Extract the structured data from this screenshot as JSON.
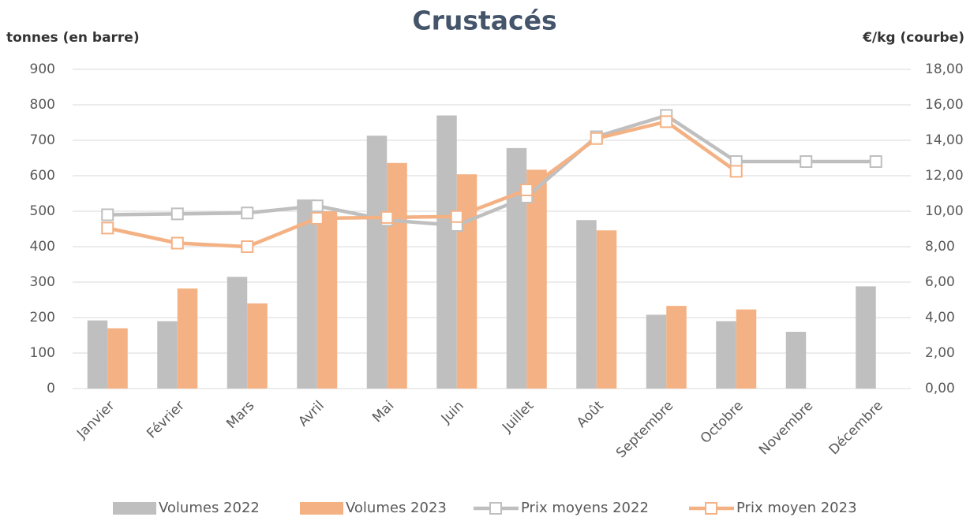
{
  "chart_data": {
    "type": "bar",
    "title": "Crustacés",
    "y_label": "tonnes (en barre)",
    "y2_label": "€/kg (courbe)",
    "categories": [
      "Janvier",
      "Février",
      "Mars",
      "Avril",
      "Mai",
      "Juin",
      "Juillet",
      "Août",
      "Septembre",
      "Octobre",
      "Novembre",
      "Décembre"
    ],
    "series": [
      {
        "name": "Volumes 2022",
        "type": "bar",
        "color": "#bfbfbf",
        "values": [
          192,
          190,
          315,
          533,
          713,
          770,
          678,
          475,
          208,
          190,
          160,
          288
        ]
      },
      {
        "name": "Volumes 2023",
        "type": "bar",
        "color": "#f4b183",
        "values": [
          170,
          282,
          240,
          500,
          636,
          604,
          617,
          446,
          233,
          223,
          null,
          null
        ]
      },
      {
        "name": "Prix moyens 2022",
        "type": "line",
        "axis": "y2",
        "color": "#bfbfbf",
        "values": [
          9.8,
          9.85,
          9.9,
          10.3,
          9.5,
          9.2,
          10.8,
          14.2,
          15.4,
          12.8,
          12.8,
          12.8
        ]
      },
      {
        "name": "Prix moyen 2023",
        "type": "line",
        "axis": "y2",
        "color": "#f4b183",
        "values": [
          9.05,
          8.2,
          8.0,
          9.6,
          9.65,
          9.7,
          11.2,
          14.1,
          15.05,
          12.25,
          null,
          null
        ]
      }
    ],
    "ylim": [
      0,
      900
    ],
    "yticks": [
      0,
      100,
      200,
      300,
      400,
      500,
      600,
      700,
      800,
      900
    ],
    "y2lim": [
      0,
      18
    ],
    "y2ticks": [
      {
        "value": 0,
        "label": "0,00"
      },
      {
        "value": 2,
        "label": "2,00"
      },
      {
        "value": 4,
        "label": "4,00"
      },
      {
        "value": 6,
        "label": "6,00"
      },
      {
        "value": 8,
        "label": "8,00"
      },
      {
        "value": 10,
        "label": "10,00"
      },
      {
        "value": 12,
        "label": "12,00"
      },
      {
        "value": 14,
        "label": "14,00"
      },
      {
        "value": 16,
        "label": "16,00"
      },
      {
        "value": 18,
        "label": "18,00"
      }
    ],
    "grid": true,
    "legend": "bottom"
  }
}
